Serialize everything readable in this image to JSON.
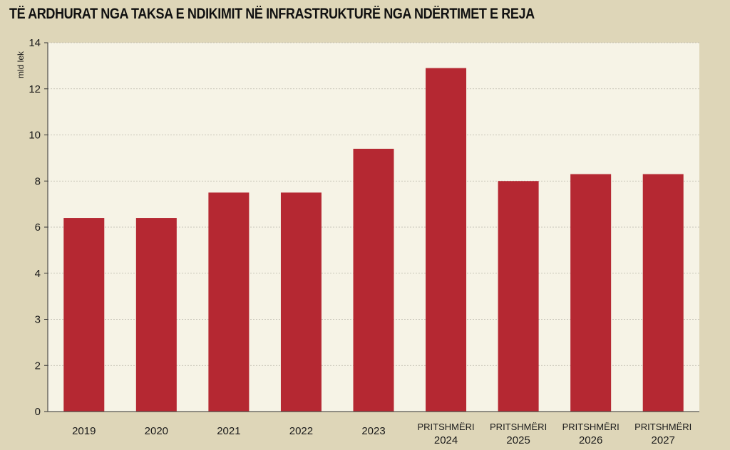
{
  "chart_data": {
    "type": "bar",
    "title": "TË ARDHURAT NGA TAKSA E NDIKIMIT NË INFRASTRUKTURË NGA NDËRTIMET E REJA",
    "ylabel": "mld lek",
    "xlabel": "",
    "categories": [
      [
        "2019"
      ],
      [
        "2020"
      ],
      [
        "2021"
      ],
      [
        "2022"
      ],
      [
        "2023"
      ],
      [
        "PRITSHMËRI",
        "2024"
      ],
      [
        "PRITSHMËRI",
        "2025"
      ],
      [
        "PRITSHMËRI",
        "2026"
      ],
      [
        "PRITSHMËRI",
        "2027"
      ]
    ],
    "values": [
      6.4,
      6.4,
      7.5,
      7.5,
      9.4,
      12.9,
      8.0,
      8.3,
      8.3
    ],
    "yticks": [
      "0",
      "2",
      "3",
      "4",
      "6",
      "8",
      "10",
      "12",
      "14"
    ],
    "ylim": [
      0,
      14
    ],
    "grid": true,
    "legend": "none",
    "colors": {
      "bar": "#b52832",
      "plot_background": "#f6f3e6",
      "page_background": "#ded6b8",
      "grid": "#b9b6aa"
    }
  }
}
